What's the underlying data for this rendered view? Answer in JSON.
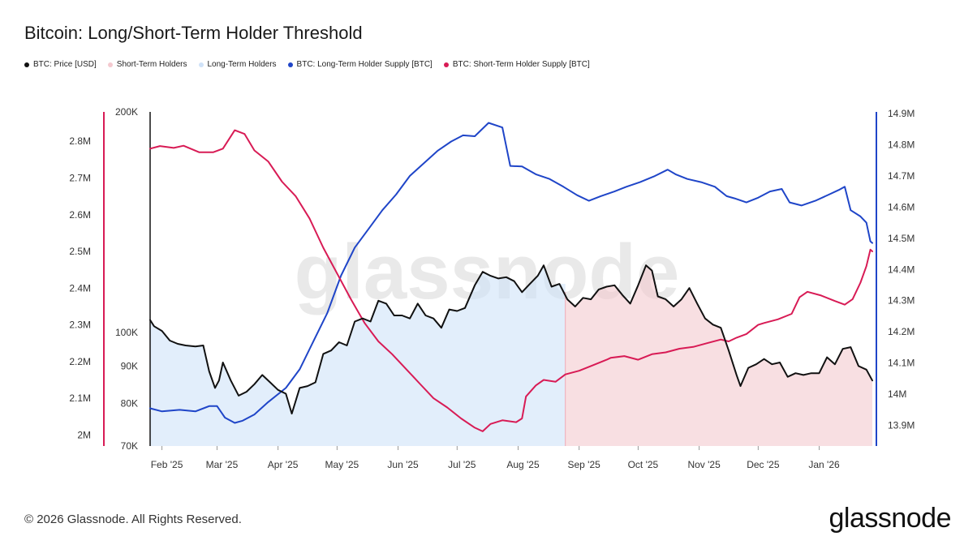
{
  "header": {
    "title": "Bitcoin: Long/Short-Term Holder Threshold"
  },
  "legend": [
    {
      "label": "BTC: Price [USD]",
      "color": "#111111",
      "icon": "dot-icon"
    },
    {
      "label": "Short-Term Holders",
      "color": "#f4c9cf",
      "icon": "dot-icon"
    },
    {
      "label": "Long-Term Holders",
      "color": "#cfe2f8",
      "icon": "dot-icon"
    },
    {
      "label": "BTC: Long-Term Holder Supply [BTC]",
      "color": "#1f45c8",
      "icon": "dot-icon"
    },
    {
      "label": "BTC: Short-Term Holder Supply [BTC]",
      "color": "#d81b55",
      "icon": "dot-icon"
    }
  ],
  "footer": {
    "copyright": "© 2026 Glassnode. All Rights Reserved.",
    "brand": "glassnode",
    "watermark": "glassnode"
  },
  "chart_data": {
    "type": "line",
    "title": "Bitcoin: Long/Short-Term Holder Threshold",
    "x_ticks": [
      "Feb '25",
      "Mar '25",
      "Apr '25",
      "May '25",
      "Jun '25",
      "Jul '25",
      "Aug '25",
      "Sep '25",
      "Oct '25",
      "Nov '25",
      "Dec '25",
      "Jan '26"
    ],
    "x_range": [
      "2025-01-26",
      "2026-01-28"
    ],
    "grid": false,
    "legend_position": "top-left",
    "axes": {
      "sth_supply": {
        "side": "left-outer",
        "color": "#d81b55",
        "ticks": [
          "2M",
          "2.1M",
          "2.2M",
          "2.3M",
          "2.4M",
          "2.5M",
          "2.6M",
          "2.7M",
          "2.8M"
        ],
        "tick_values": [
          2000000,
          2100000,
          2200000,
          2300000,
          2400000,
          2500000,
          2600000,
          2700000,
          2800000
        ],
        "range": [
          1970000,
          2880000
        ]
      },
      "price": {
        "side": "left-inner",
        "color": "#111111",
        "scale": "log",
        "ticks": [
          "70K",
          "80K",
          "90K",
          "100K",
          "200K"
        ],
        "tick_values": [
          70000,
          80000,
          90000,
          100000,
          200000
        ],
        "range": [
          70000,
          200000
        ]
      },
      "lth_supply": {
        "side": "right",
        "color": "#1f45c8",
        "ticks": [
          "13.9M",
          "14M",
          "14.1M",
          "14.2M",
          "14.3M",
          "14.4M",
          "14.5M",
          "14.6M",
          "14.7M",
          "14.8M",
          "14.9M"
        ],
        "tick_values": [
          13900000,
          14000000,
          14100000,
          14200000,
          14300000,
          14400000,
          14500000,
          14600000,
          14700000,
          14800000,
          14900000
        ],
        "range": [
          13834000,
          14905000
        ]
      }
    },
    "regions": [
      {
        "name": "Long-Term Holders",
        "from": "2025-01-26",
        "to": "2025-08-25",
        "color": "#cfe2f8"
      },
      {
        "name": "Short-Term Holders",
        "from": "2025-08-25",
        "to": "2026-01-28",
        "color": "#f4c9cf"
      }
    ],
    "series": [
      {
        "name": "BTC: Price [USD]",
        "axis": "price",
        "color": "#111111",
        "points": [
          [
            "2025-01-26",
            104000
          ],
          [
            "2025-01-28",
            102000
          ],
          [
            "2025-02-01",
            100500
          ],
          [
            "2025-02-05",
            97500
          ],
          [
            "2025-02-09",
            96500
          ],
          [
            "2025-02-13",
            96000
          ],
          [
            "2025-02-18",
            95700
          ],
          [
            "2025-02-22",
            96000
          ],
          [
            "2025-02-25",
            88500
          ],
          [
            "2025-02-28",
            84000
          ],
          [
            "2025-03-02",
            86000
          ],
          [
            "2025-03-04",
            91000
          ],
          [
            "2025-03-08",
            86000
          ],
          [
            "2025-03-12",
            82000
          ],
          [
            "2025-03-16",
            83000
          ],
          [
            "2025-03-20",
            85000
          ],
          [
            "2025-03-24",
            87500
          ],
          [
            "2025-03-28",
            85500
          ],
          [
            "2025-04-01",
            83500
          ],
          [
            "2025-04-05",
            82500
          ],
          [
            "2025-04-08",
            77500
          ],
          [
            "2025-04-12",
            84000
          ],
          [
            "2025-04-16",
            84500
          ],
          [
            "2025-04-20",
            85500
          ],
          [
            "2025-04-24",
            93500
          ],
          [
            "2025-04-28",
            94500
          ],
          [
            "2025-05-02",
            97000
          ],
          [
            "2025-05-06",
            96000
          ],
          [
            "2025-05-10",
            103500
          ],
          [
            "2025-05-14",
            104500
          ],
          [
            "2025-05-18",
            103500
          ],
          [
            "2025-05-22",
            110500
          ],
          [
            "2025-05-26",
            109500
          ],
          [
            "2025-05-30",
            105500
          ],
          [
            "2025-06-03",
            105500
          ],
          [
            "2025-06-07",
            104500
          ],
          [
            "2025-06-11",
            109500
          ],
          [
            "2025-06-15",
            105500
          ],
          [
            "2025-06-19",
            104500
          ],
          [
            "2025-06-23",
            101500
          ],
          [
            "2025-06-27",
            107500
          ],
          [
            "2025-07-01",
            107000
          ],
          [
            "2025-07-05",
            108000
          ],
          [
            "2025-07-10",
            116000
          ],
          [
            "2025-07-14",
            121000
          ],
          [
            "2025-07-18",
            119500
          ],
          [
            "2025-07-22",
            118500
          ],
          [
            "2025-07-26",
            119000
          ],
          [
            "2025-07-30",
            117500
          ],
          [
            "2025-08-03",
            113500
          ],
          [
            "2025-08-07",
            116500
          ],
          [
            "2025-08-11",
            119500
          ],
          [
            "2025-08-14",
            123500
          ],
          [
            "2025-08-18",
            115500
          ],
          [
            "2025-08-22",
            116500
          ],
          [
            "2025-08-26",
            111000
          ],
          [
            "2025-08-30",
            108500
          ],
          [
            "2025-09-03",
            111500
          ],
          [
            "2025-09-07",
            111000
          ],
          [
            "2025-09-11",
            114500
          ],
          [
            "2025-09-15",
            115500
          ],
          [
            "2025-09-19",
            116000
          ],
          [
            "2025-09-23",
            112500
          ],
          [
            "2025-09-27",
            109500
          ],
          [
            "2025-10-01",
            116000
          ],
          [
            "2025-10-05",
            123500
          ],
          [
            "2025-10-08",
            121500
          ],
          [
            "2025-10-11",
            112000
          ],
          [
            "2025-10-15",
            111000
          ],
          [
            "2025-10-19",
            108500
          ],
          [
            "2025-10-23",
            111000
          ],
          [
            "2025-10-27",
            115000
          ],
          [
            "2025-10-31",
            109500
          ],
          [
            "2025-11-04",
            104500
          ],
          [
            "2025-11-08",
            102500
          ],
          [
            "2025-11-12",
            101500
          ],
          [
            "2025-11-16",
            94500
          ],
          [
            "2025-11-20",
            87500
          ],
          [
            "2025-11-22",
            84500
          ],
          [
            "2025-11-26",
            89500
          ],
          [
            "2025-11-30",
            90500
          ],
          [
            "2025-12-04",
            92000
          ],
          [
            "2025-12-08",
            90500
          ],
          [
            "2025-12-12",
            91000
          ],
          [
            "2025-12-16",
            87000
          ],
          [
            "2025-12-20",
            88000
          ],
          [
            "2025-12-24",
            87500
          ],
          [
            "2025-12-28",
            88000
          ],
          [
            "2026-01-01",
            88000
          ],
          [
            "2026-01-05",
            92500
          ],
          [
            "2026-01-09",
            90500
          ],
          [
            "2026-01-13",
            95000
          ],
          [
            "2026-01-17",
            95500
          ],
          [
            "2026-01-21",
            90000
          ],
          [
            "2026-01-25",
            89000
          ],
          [
            "2026-01-28",
            86000
          ]
        ]
      },
      {
        "name": "BTC: Long-Term Holder Supply [BTC]",
        "axis": "lth_supply",
        "color": "#1f45c8",
        "points": [
          [
            "2025-01-26",
            13955000
          ],
          [
            "2025-02-01",
            13945000
          ],
          [
            "2025-02-10",
            13950000
          ],
          [
            "2025-02-18",
            13945000
          ],
          [
            "2025-02-25",
            13962000
          ],
          [
            "2025-03-01",
            13962000
          ],
          [
            "2025-03-05",
            13925000
          ],
          [
            "2025-03-10",
            13908000
          ],
          [
            "2025-03-14",
            13915000
          ],
          [
            "2025-03-20",
            13935000
          ],
          [
            "2025-03-27",
            13975000
          ],
          [
            "2025-04-05",
            14020000
          ],
          [
            "2025-04-12",
            14080000
          ],
          [
            "2025-04-19",
            14170000
          ],
          [
            "2025-04-26",
            14260000
          ],
          [
            "2025-05-03",
            14380000
          ],
          [
            "2025-05-10",
            14470000
          ],
          [
            "2025-05-17",
            14530000
          ],
          [
            "2025-05-24",
            14590000
          ],
          [
            "2025-05-31",
            14640000
          ],
          [
            "2025-06-07",
            14700000
          ],
          [
            "2025-06-14",
            14740000
          ],
          [
            "2025-06-21",
            14780000
          ],
          [
            "2025-06-28",
            14810000
          ],
          [
            "2025-07-04",
            14830000
          ],
          [
            "2025-07-10",
            14827000
          ],
          [
            "2025-07-17",
            14870000
          ],
          [
            "2025-07-24",
            14855000
          ],
          [
            "2025-07-28",
            14732000
          ],
          [
            "2025-08-03",
            14730000
          ],
          [
            "2025-08-10",
            14705000
          ],
          [
            "2025-08-17",
            14690000
          ],
          [
            "2025-08-24",
            14665000
          ],
          [
            "2025-08-31",
            14638000
          ],
          [
            "2025-09-06",
            14620000
          ],
          [
            "2025-09-12",
            14635000
          ],
          [
            "2025-09-19",
            14650000
          ],
          [
            "2025-09-25",
            14665000
          ],
          [
            "2025-10-02",
            14680000
          ],
          [
            "2025-10-09",
            14698000
          ],
          [
            "2025-10-16",
            14720000
          ],
          [
            "2025-10-20",
            14705000
          ],
          [
            "2025-10-26",
            14690000
          ],
          [
            "2025-11-02",
            14680000
          ],
          [
            "2025-11-09",
            14665000
          ],
          [
            "2025-11-15",
            14635000
          ],
          [
            "2025-11-19",
            14628000
          ],
          [
            "2025-11-25",
            14615000
          ],
          [
            "2025-12-01",
            14630000
          ],
          [
            "2025-12-07",
            14650000
          ],
          [
            "2025-12-13",
            14658000
          ],
          [
            "2025-12-17",
            14615000
          ],
          [
            "2025-12-23",
            14605000
          ],
          [
            "2025-12-30",
            14620000
          ],
          [
            "2026-01-06",
            14640000
          ],
          [
            "2026-01-11",
            14655000
          ],
          [
            "2026-01-14",
            14665000
          ],
          [
            "2026-01-17",
            14590000
          ],
          [
            "2026-01-22",
            14570000
          ],
          [
            "2026-01-25",
            14550000
          ],
          [
            "2026-01-27",
            14490000
          ],
          [
            "2026-01-28",
            14485000
          ]
        ]
      },
      {
        "name": "BTC: Short-Term Holder Supply [BTC]",
        "axis": "sth_supply",
        "color": "#d81b55",
        "points": [
          [
            "2025-01-26",
            2780000
          ],
          [
            "2025-01-31",
            2787000
          ],
          [
            "2025-02-07",
            2782000
          ],
          [
            "2025-02-12",
            2788000
          ],
          [
            "2025-02-20",
            2770000
          ],
          [
            "2025-02-27",
            2770000
          ],
          [
            "2025-03-04",
            2780000
          ],
          [
            "2025-03-10",
            2830000
          ],
          [
            "2025-03-15",
            2820000
          ],
          [
            "2025-03-20",
            2775000
          ],
          [
            "2025-03-27",
            2745000
          ],
          [
            "2025-04-03",
            2690000
          ],
          [
            "2025-04-10",
            2650000
          ],
          [
            "2025-04-17",
            2590000
          ],
          [
            "2025-04-24",
            2510000
          ],
          [
            "2025-05-01",
            2440000
          ],
          [
            "2025-05-08",
            2370000
          ],
          [
            "2025-05-15",
            2305000
          ],
          [
            "2025-05-22",
            2255000
          ],
          [
            "2025-05-29",
            2220000
          ],
          [
            "2025-06-05",
            2180000
          ],
          [
            "2025-06-12",
            2140000
          ],
          [
            "2025-06-19",
            2100000
          ],
          [
            "2025-06-26",
            2075000
          ],
          [
            "2025-07-03",
            2045000
          ],
          [
            "2025-07-10",
            2020000
          ],
          [
            "2025-07-14",
            2010000
          ],
          [
            "2025-07-18",
            2030000
          ],
          [
            "2025-07-24",
            2040000
          ],
          [
            "2025-07-31",
            2035000
          ],
          [
            "2025-08-03",
            2045000
          ],
          [
            "2025-08-05",
            2105000
          ],
          [
            "2025-08-10",
            2135000
          ],
          [
            "2025-08-14",
            2150000
          ],
          [
            "2025-08-20",
            2145000
          ],
          [
            "2025-08-25",
            2165000
          ],
          [
            "2025-09-01",
            2175000
          ],
          [
            "2025-09-08",
            2190000
          ],
          [
            "2025-09-15",
            2205000
          ],
          [
            "2025-09-17",
            2210000
          ],
          [
            "2025-09-24",
            2215000
          ],
          [
            "2025-10-01",
            2205000
          ],
          [
            "2025-10-08",
            2220000
          ],
          [
            "2025-10-15",
            2225000
          ],
          [
            "2025-10-22",
            2235000
          ],
          [
            "2025-10-29",
            2240000
          ],
          [
            "2025-11-05",
            2250000
          ],
          [
            "2025-11-12",
            2260000
          ],
          [
            "2025-11-16",
            2255000
          ],
          [
            "2025-11-20",
            2265000
          ],
          [
            "2025-11-25",
            2275000
          ],
          [
            "2025-12-01",
            2300000
          ],
          [
            "2025-12-04",
            2305000
          ],
          [
            "2025-12-11",
            2315000
          ],
          [
            "2025-12-18",
            2330000
          ],
          [
            "2025-12-22",
            2375000
          ],
          [
            "2025-12-26",
            2390000
          ],
          [
            "2026-01-02",
            2380000
          ],
          [
            "2026-01-09",
            2365000
          ],
          [
            "2026-01-14",
            2355000
          ],
          [
            "2026-01-18",
            2370000
          ],
          [
            "2026-01-22",
            2415000
          ],
          [
            "2026-01-25",
            2460000
          ],
          [
            "2026-01-27",
            2505000
          ],
          [
            "2026-01-28",
            2500000
          ]
        ]
      }
    ]
  }
}
